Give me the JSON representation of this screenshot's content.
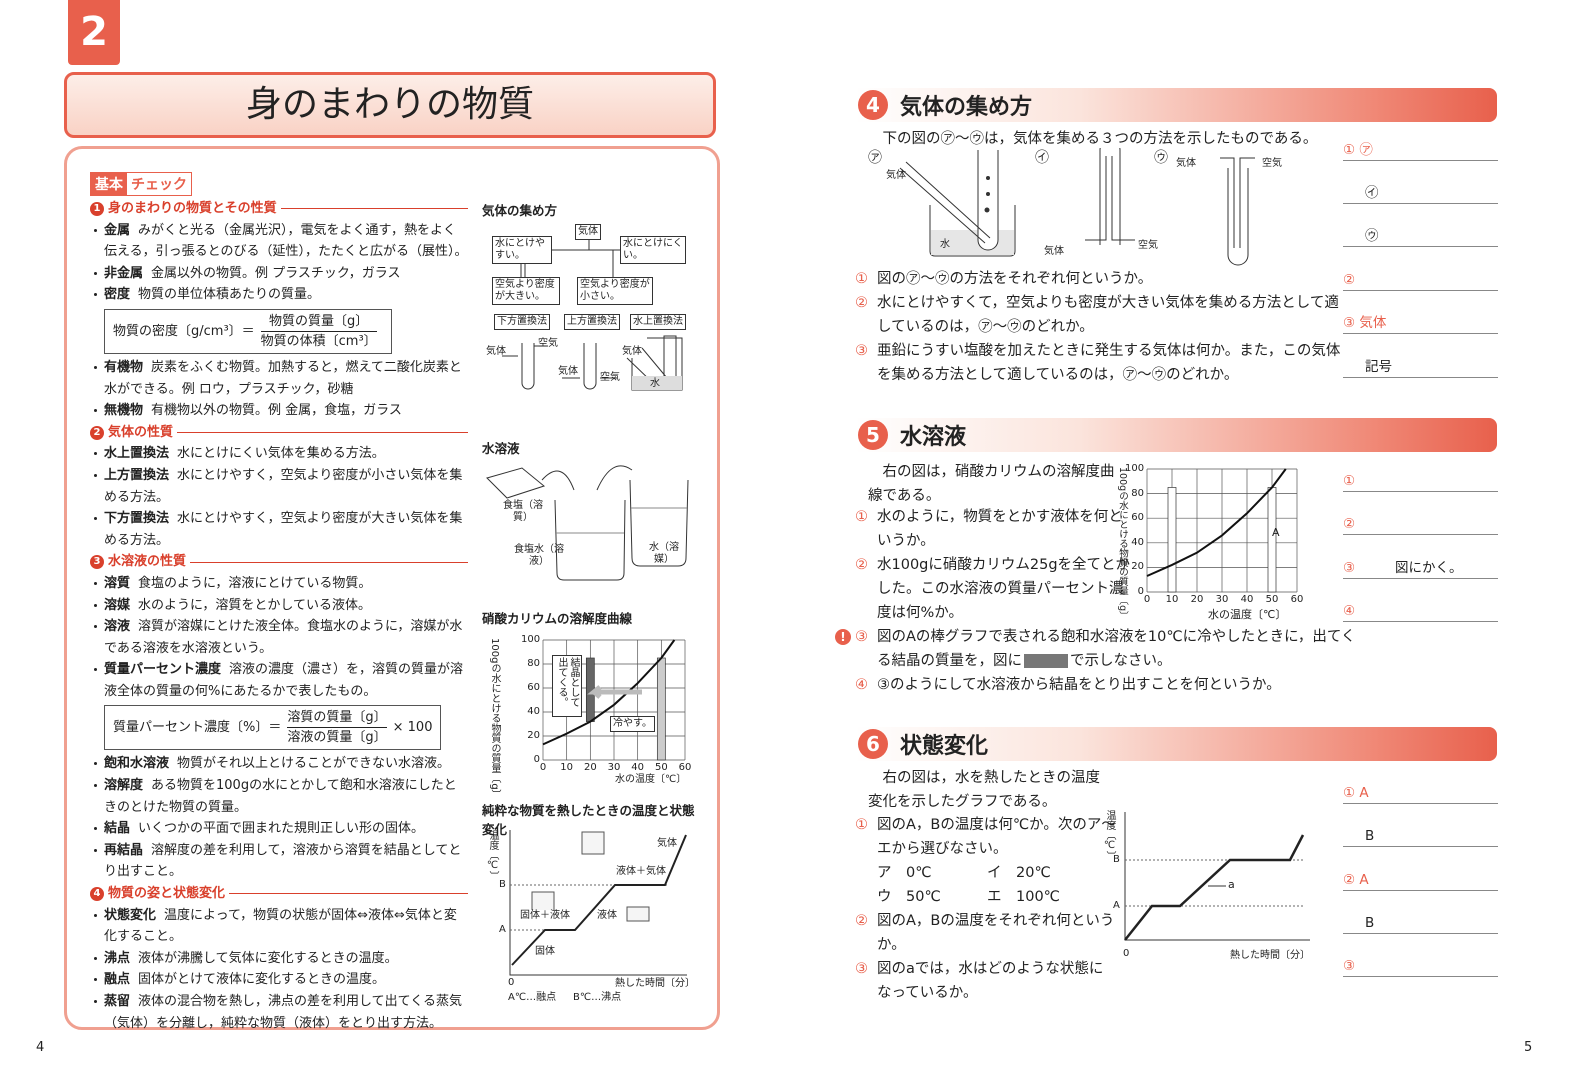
{
  "page_numbers": {
    "left": "4",
    "right": "5"
  },
  "left": {
    "chapter": "2",
    "title": "身のまわりの物質",
    "check": {
      "a": "基本",
      "b": "チェック"
    },
    "sections": [
      {
        "num": "1",
        "heading": "身のまわりの物質とその性質",
        "items": [
          {
            "term": "金属",
            "text": "みがくと光る（金属光沢），電気をよく通す，熱をよく伝える，引っ張るとのびる（延性），たたくと広がる（展性）。"
          },
          {
            "term": "非金属",
            "text": "金属以外の物質。例 プラスチック，ガラス"
          },
          {
            "term": "密度",
            "text": "物質の単位体積あたりの質量。",
            "formula": {
              "lhs": "物質の密度〔g/cm³〕＝",
              "num": "物質の質量〔g〕",
              "den": "物質の体積〔cm³〕"
            }
          },
          {
            "term": "有機物",
            "text": "炭素をふくむ物質。加熱すると，燃えて二酸化炭素と水ができる。例 ロウ，プラスチック，砂糖"
          },
          {
            "term": "無機物",
            "text": "有機物以外の物質。例 金属，食塩，ガラス"
          }
        ]
      },
      {
        "num": "2",
        "heading": "気体の性質",
        "items": [
          {
            "term": "水上置換法",
            "text": "水にとけにくい気体を集める方法。"
          },
          {
            "term": "上方置換法",
            "text": "水にとけやすく，空気より密度が小さい気体を集める方法。"
          },
          {
            "term": "下方置換法",
            "text": "水にとけやすく，空気より密度が大きい気体を集める方法。"
          }
        ]
      },
      {
        "num": "3",
        "heading": "水溶液の性質",
        "items": [
          {
            "term": "溶質",
            "text": "食塩のように，溶液にとけている物質。"
          },
          {
            "term": "溶媒",
            "text": "水のように，溶質をとかしている液体。"
          },
          {
            "term": "溶液",
            "text": "溶質が溶媒にとけた液全体。食塩水のように，溶媒が水である溶液を水溶液という。"
          },
          {
            "term": "質量パーセント濃度",
            "text": "溶液の濃度（濃さ）を，溶質の質量が溶液全体の質量の何%にあたるかで表したもの。",
            "formula": {
              "lhs": "質量パーセント濃度〔%〕＝",
              "num": "溶質の質量〔g〕",
              "den": "溶液の質量〔g〕",
              "tail": "× 100"
            }
          },
          {
            "term": "飽和水溶液",
            "text": "物質がそれ以上とけることができない水溶液。"
          },
          {
            "term": "溶解度",
            "text": "ある物質を100gの水にとかして飽和水溶液にしたときのとけた物質の質量。"
          },
          {
            "term": "結晶",
            "text": "いくつかの平面で囲まれた規則正しい形の固体。"
          },
          {
            "term": "再結晶",
            "text": "溶解度の差を利用して，溶液から溶質を結晶としてとり出すこと。"
          }
        ]
      },
      {
        "num": "4",
        "heading": "物質の姿と状態変化",
        "items": [
          {
            "term": "状態変化",
            "text": "温度によって，物質の状態が固体⇔液体⇔気体と変化すること。"
          },
          {
            "term": "沸点",
            "text": "液体が沸騰して気体に変化するときの温度。"
          },
          {
            "term": "融点",
            "text": "固体がとけて液体に変化するときの温度。"
          },
          {
            "term": "蒸留",
            "text": "液体の混合物を熱し，沸点の差を利用して出てくる蒸気（気体）を分離し，純粋な物質（液体）をとり出す方法。"
          }
        ]
      }
    ],
    "figures": {
      "gas": {
        "title": "気体の集め方",
        "root": "気体",
        "soluble": "水にとけやすい。",
        "insoluble": "水にとけにくい。",
        "heavier": "空気より密度が大きい。",
        "lighter": "空気より密度が小さい。",
        "down": "下方置換法",
        "up": "上方置換法",
        "water": "水上置換法",
        "labels": [
          "気体",
          "空気",
          "気体",
          "空気",
          "気体",
          "水"
        ]
      },
      "solution": {
        "title": "水溶液",
        "solute": "食塩（溶質）",
        "solution": "食塩水（溶液）",
        "solvent": "水（溶媒）"
      },
      "solubility": {
        "title": "硝酸カリウムの溶解度曲線",
        "ylabel": "100gの水にとける物質の質量〔g〕",
        "yticks": [
          0,
          20,
          40,
          60,
          80,
          100
        ],
        "xticks": [
          0,
          10,
          20,
          30,
          40,
          50,
          60
        ],
        "xlabel": "水の温度〔℃〕",
        "crystal": "結晶として出てくる。",
        "cool": "冷やす。"
      },
      "state": {
        "title": "純粋な物質を熱したときの温度と状態変化",
        "ylabel": "温度〔℃〕",
        "b": "B",
        "a": "A",
        "origin": "0",
        "gas": "気体",
        "liquid_gas": "液体＋気体",
        "solid_liquid": "固体＋液体",
        "liquid": "液体",
        "solid": "固体",
        "xlabel": "熱した時間〔分〕",
        "note_a": "A℃…融点",
        "note_b": "B℃…沸点"
      }
    }
  },
  "right": {
    "questions": [
      {
        "num": "4",
        "heading": "気体の集め方",
        "intro": "下の図の㋐〜㋒は，気体を集める３つの方法を示したものである。",
        "figure": {
          "a": {
            "mark": "㋐",
            "gas": "気体",
            "water": "水"
          },
          "b": {
            "mark": "㋑",
            "gas": "気体",
            "air": "空気"
          },
          "c": {
            "mark": "㋒",
            "gas": "気体",
            "air": "空気"
          }
        },
        "items": [
          {
            "num": "①",
            "text": "図の㋐〜㋒の方法をそれぞれ何というか。"
          },
          {
            "num": "②",
            "text": "水にとけやすくて，空気よりも密度が大きい気体を集める方法として適しているのは，㋐〜㋒のどれか。"
          },
          {
            "num": "③",
            "text": "亜鉛にうすい塩酸を加えたときに発生する気体は何か。また，この気体を集める方法として適しているのは，㋐〜㋒のどれか。"
          }
        ],
        "answers": [
          {
            "label": "① ㋐"
          },
          {
            "label": "㋑"
          },
          {
            "label": "㋒"
          },
          {
            "label": "②"
          },
          {
            "label": "③ 気体"
          },
          {
            "label": "記号"
          }
        ]
      },
      {
        "num": "5",
        "heading": "水溶液",
        "intro": "右の図は，硝酸カリウムの溶解度曲線である。",
        "chart": {
          "ylabel": "100gの水にとける物質の質量〔g〕",
          "yticks": [
            0,
            20,
            40,
            60,
            80,
            100
          ],
          "xticks": [
            0,
            10,
            20,
            30,
            40,
            50,
            60
          ],
          "xlabel": "水の温度〔℃〕",
          "bar_label": "A"
        },
        "items": [
          {
            "num": "①",
            "text": "水のように，物質をとかす液体を何というか。"
          },
          {
            "num": "②",
            "text": "水100gに硝酸カリウム25gを全てとかした。この水溶液の質量パーセント濃度は何%か。"
          },
          {
            "num": "③",
            "alert": "!",
            "text": "図のAの棒グラフで表される飽和水溶液を10℃に冷やしたときに，出てくる結晶の質量を，図に",
            "text_after": "で示しなさい。"
          },
          {
            "num": "④",
            "text": "③のようにして水溶液から結晶をとり出すことを何というか。"
          }
        ],
        "answers": [
          {
            "label": "①"
          },
          {
            "label": "②"
          },
          {
            "label": "③",
            "note": "図にかく。"
          },
          {
            "label": "④"
          }
        ]
      },
      {
        "num": "6",
        "heading": "状態変化",
        "intro": "右の図は，水を熱したときの温度変化を示したグラフである。",
        "chart": {
          "ylabel": "温度〔℃〕",
          "b": "B",
          "a": "A",
          "point": "a",
          "origin": "0",
          "xlabel": "熱した時間〔分〕"
        },
        "items": [
          {
            "num": "①",
            "text": "図のA，Bの温度は何℃か。次のア〜エから選びなさい。",
            "options": [
              "ア　0℃",
              "イ　20℃",
              "ウ　50℃",
              "エ　100℃"
            ]
          },
          {
            "num": "②",
            "text": "図のA，Bの温度をそれぞれ何というか。"
          },
          {
            "num": "③",
            "text": "図のaでは，水はどのような状態になっているか。"
          }
        ],
        "answers": [
          {
            "label": "① A"
          },
          {
            "label": "B"
          },
          {
            "label": "② A"
          },
          {
            "label": "B"
          },
          {
            "label": "③"
          }
        ]
      }
    ]
  }
}
